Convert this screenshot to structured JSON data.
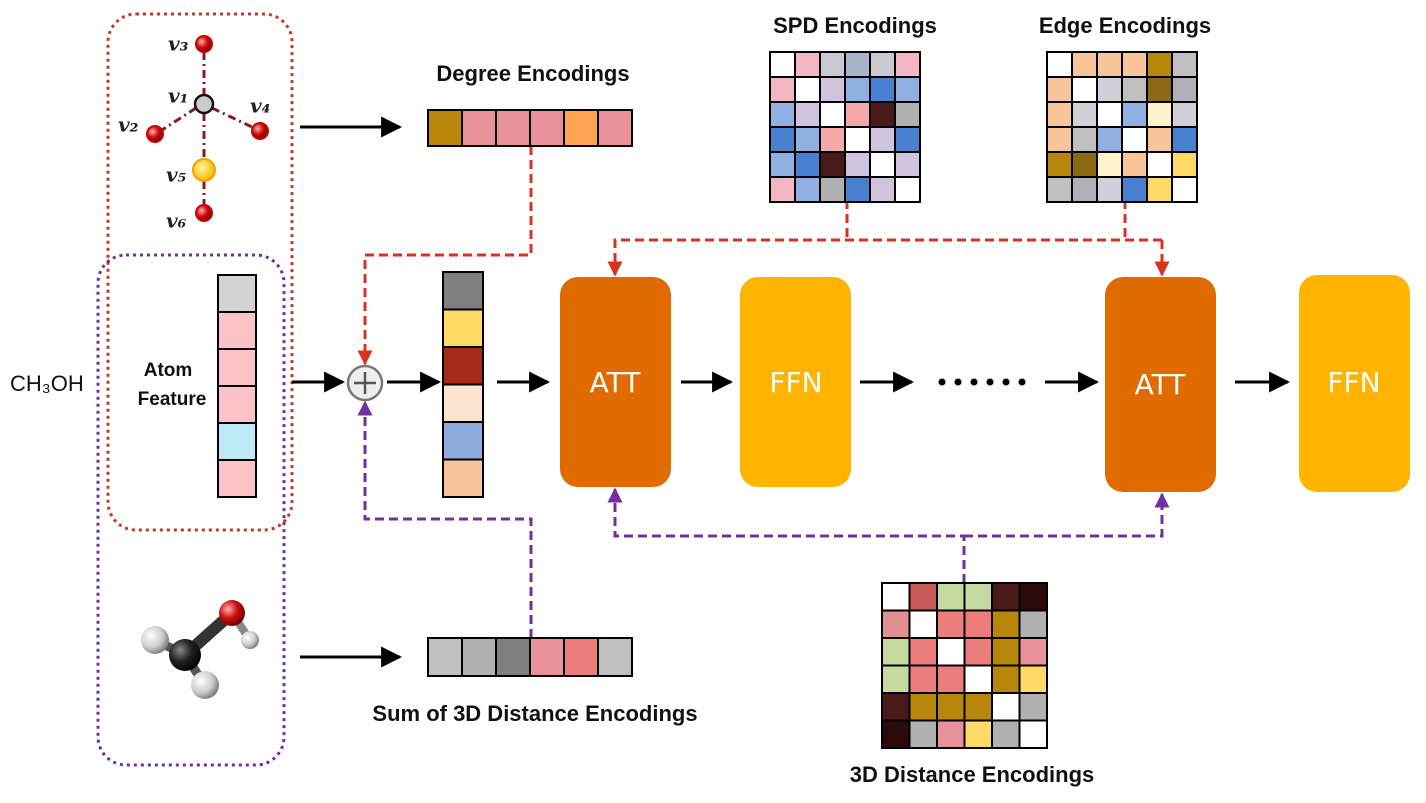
{
  "molecule": "CH₃OH",
  "graph_nodes": [
    "v₃",
    "v₁",
    "v₂",
    "v₄",
    "v₅",
    "v₆"
  ],
  "atom_feature": [
    "Atom",
    "Feature"
  ],
  "degree_encodings": "Degree Encodings",
  "spd_encodings": "SPD Encodings",
  "edge_encodings": "Edge Encodings",
  "sum_3d_distance_encodings": "Sum of 3D Distance Encodings",
  "distance_3d_encodings": "3D Distance Encodings",
  "blocks": [
    "ATT",
    "FFN",
    "ATT",
    "FFN"
  ]
}
